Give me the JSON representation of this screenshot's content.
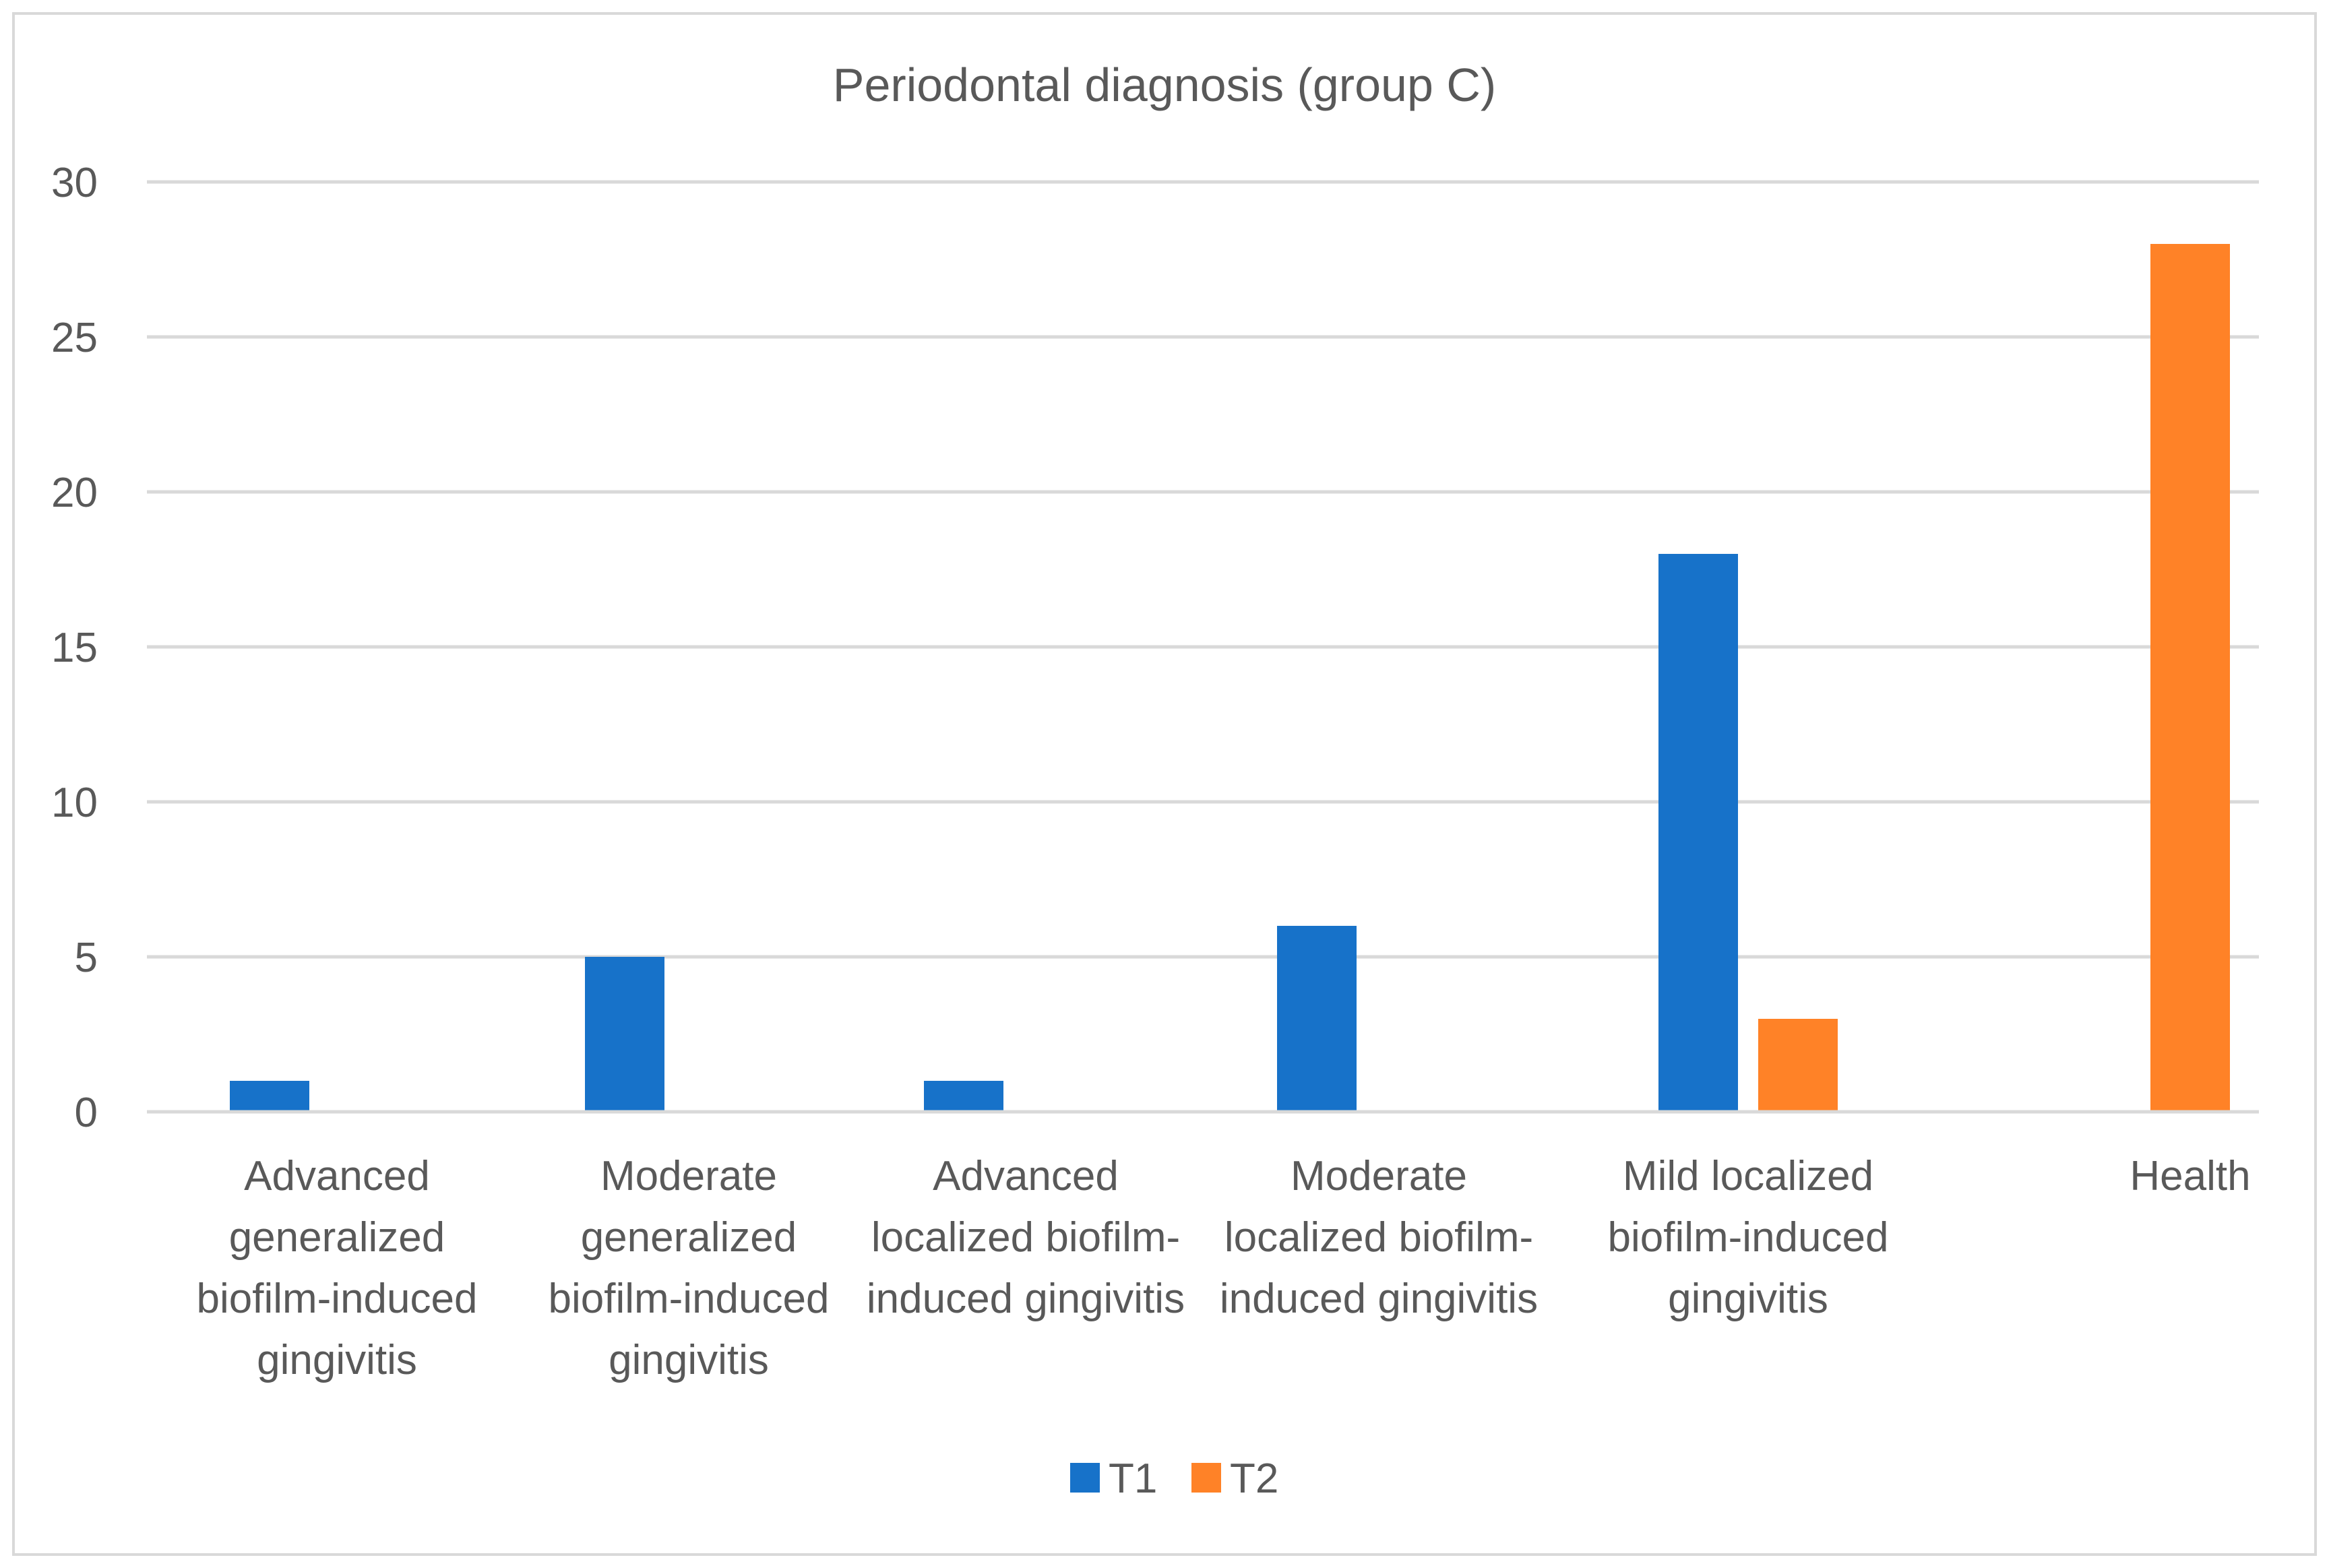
{
  "chart_data": {
    "type": "bar",
    "title": "Periodontal diagnosis (group C)",
    "xlabel": "",
    "ylabel": "",
    "ylim": [
      0,
      30
    ],
    "yticks": [
      0,
      5,
      10,
      15,
      20,
      25,
      30
    ],
    "grid": true,
    "legend_position": "bottom",
    "categories": [
      [
        "Advanced",
        "generalized",
        "biofilm-induced",
        "gingivitis"
      ],
      [
        "Moderate",
        "generalized",
        "biofilm-induced",
        "gingivitis"
      ],
      [
        "Advanced",
        "localized biofilm-",
        "induced gingivitis"
      ],
      [
        "Moderate",
        "localized biofilm-",
        "induced gingivitis"
      ],
      [
        "Mild localized",
        "biofilm-induced",
        "gingivitis"
      ],
      [
        "Health"
      ]
    ],
    "series": [
      {
        "name": "T1",
        "color": "#1772C9",
        "values": [
          1,
          5,
          1,
          6,
          18,
          null
        ]
      },
      {
        "name": "T2",
        "color": "#FF8227",
        "values": [
          null,
          null,
          null,
          null,
          3,
          28
        ]
      }
    ]
  }
}
